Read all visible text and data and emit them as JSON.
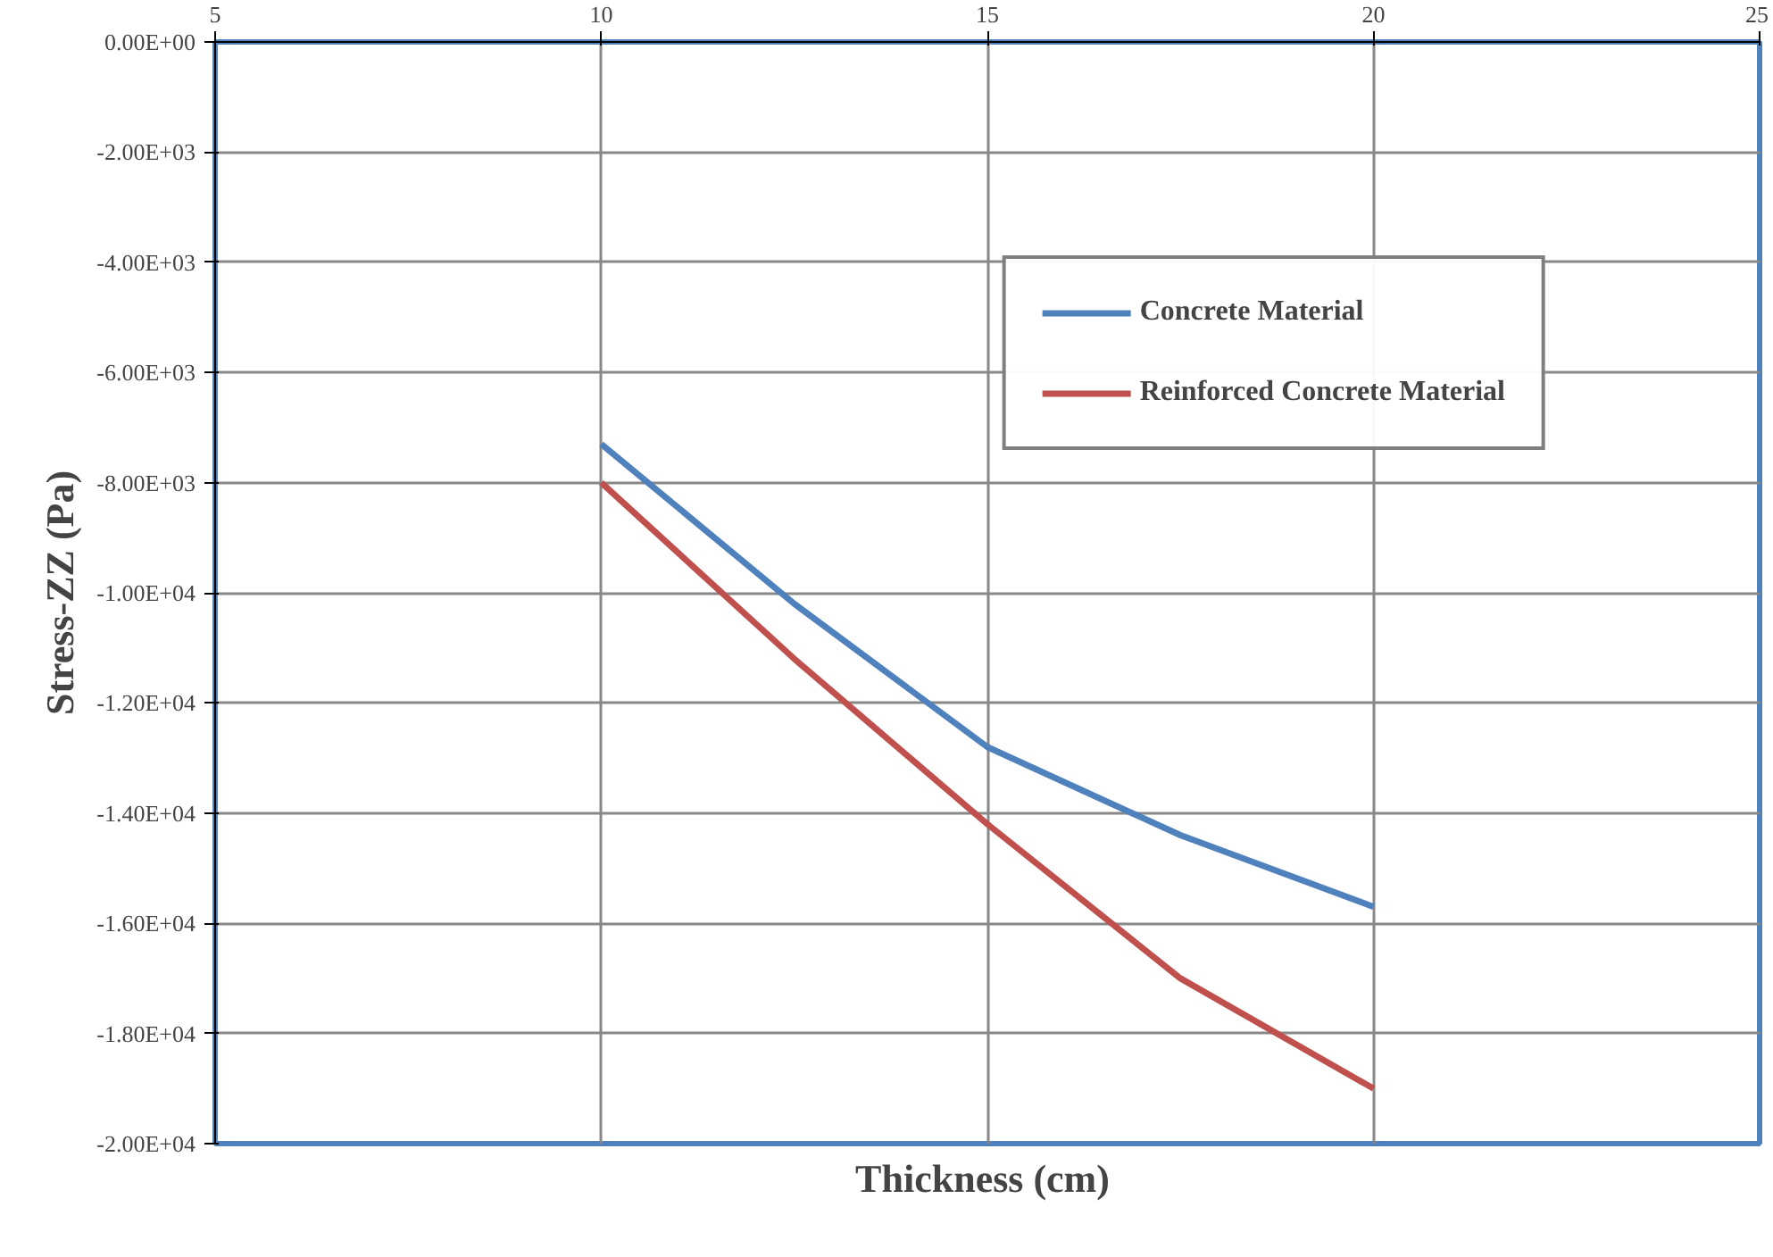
{
  "chart_data": {
    "type": "line",
    "xlabel": "Thickness  (cm)",
    "ylabel": "Stress-ZZ (Pa)",
    "xlim": [
      5,
      25
    ],
    "xticks": [
      5,
      10,
      15,
      20,
      25
    ],
    "ylim": [
      -20000,
      0
    ],
    "yticks": [
      {
        "value": 0,
        "label": "0.00E+00"
      },
      {
        "value": -2000,
        "label": "-2.00E+03"
      },
      {
        "value": -4000,
        "label": "-4.00E+03"
      },
      {
        "value": -6000,
        "label": "-6.00E+03"
      },
      {
        "value": -8000,
        "label": "-8.00E+03"
      },
      {
        "value": -10000,
        "label": "-1.00E+04"
      },
      {
        "value": -12000,
        "label": "-1.20E+04"
      },
      {
        "value": -14000,
        "label": "-1.40E+04"
      },
      {
        "value": -16000,
        "label": "-1.60E+04"
      },
      {
        "value": -18000,
        "label": "-1.80E+04"
      },
      {
        "value": -20000,
        "label": "-2.00E+04"
      }
    ],
    "grid": true,
    "legend": "top right",
    "line_style": "solid",
    "series": [
      {
        "name": "Concrete Material",
        "color": "#4f81bd",
        "x": [
          10,
          12.5,
          15,
          17.5,
          20
        ],
        "values": [
          -7300,
          -10200,
          -12800,
          -14400,
          -15700
        ]
      },
      {
        "name": "Reinforced Concrete Material",
        "color": "#c0504d",
        "x": [
          10,
          12.5,
          15,
          17.5,
          20
        ],
        "values": [
          -8000,
          -11200,
          -14200,
          -17000,
          -19000
        ]
      }
    ]
  }
}
